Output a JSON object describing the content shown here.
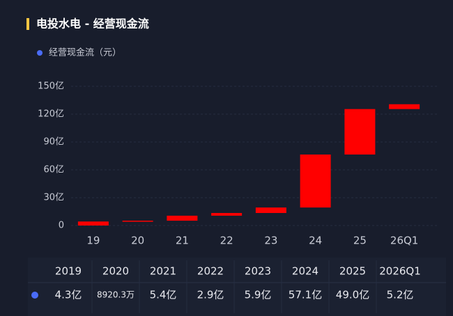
{
  "chart_data": {
    "type": "waterfall",
    "title": "电投水电 - 经营现金流",
    "categories": [
      "19",
      "20",
      "21",
      "22",
      "23",
      "24",
      "25",
      "26Q1"
    ],
    "series": [
      {
        "name": "经营现金流（元）",
        "color": "#ff0000",
        "values": [
          4.3,
          0.89203,
          5.4,
          2.9,
          5.9,
          57.1,
          49.0,
          5.2
        ]
      }
    ],
    "value_labels": [
      "4.3亿",
      "8920.3万",
      "5.4亿",
      "2.9亿",
      "5.9亿",
      "57.1亿",
      "49.0亿",
      "5.2亿"
    ],
    "table_header": [
      "2019",
      "2020",
      "2021",
      "2022",
      "2023",
      "2024",
      "2025",
      "2026Q1"
    ],
    "ylim": [
      0,
      150
    ],
    "yticks": [
      0,
      {
        "value": 30,
        "label": "30亿"
      },
      {
        "value": 60,
        "label": "60亿"
      },
      {
        "value": 90,
        "label": "90亿"
      },
      {
        "value": 120,
        "label": "120亿"
      },
      {
        "value": 150,
        "label": "150亿"
      }
    ],
    "grid": true
  }
}
